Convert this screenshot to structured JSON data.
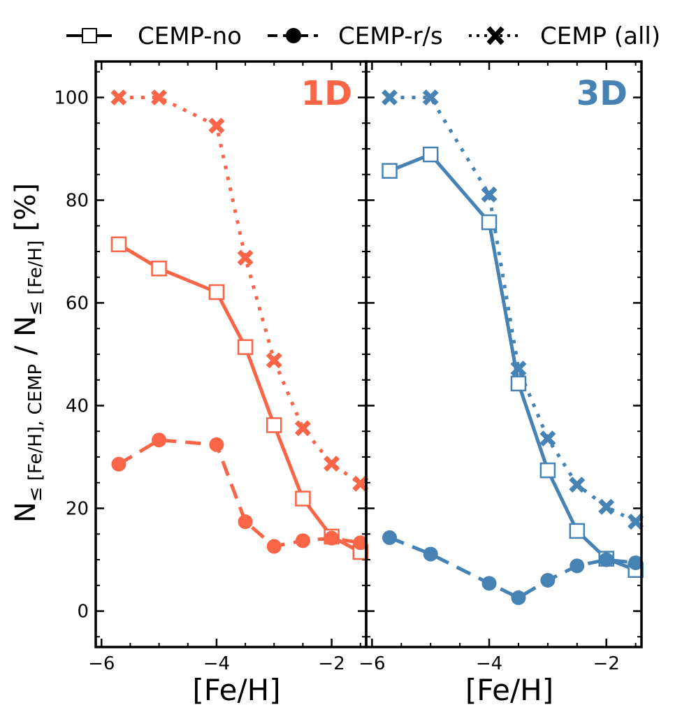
{
  "legend": {
    "position": "top",
    "entries": [
      {
        "label": "CEMP-no",
        "style": "solid",
        "marker": "open-square"
      },
      {
        "label": "CEMP-r/s",
        "style": "dashed",
        "marker": "filled-circle"
      },
      {
        "label": "CEMP (all)",
        "style": "dotted",
        "marker": "x-cross"
      }
    ]
  },
  "ylabel": {
    "main": "N",
    "sub1": "≤ [Fe/H], CEMP",
    "slash": " / N",
    "sub2": "≤ [Fe/H]",
    "unit": " [%]"
  },
  "chart_data": [
    {
      "type": "line",
      "panel_label": "1D",
      "color": "#fa6447",
      "xlabel": "[Fe/H]",
      "xlim": [
        -6.1,
        -1.4
      ],
      "ylim": [
        -7,
        107
      ],
      "xticks": [
        -6,
        -4,
        -2
      ],
      "xtick_labels": [
        "−6",
        "−4",
        "−2"
      ],
      "yticks": [
        0,
        20,
        40,
        60,
        80,
        100
      ],
      "ytick_labels": [
        "0",
        "20",
        "40",
        "60",
        "80",
        "100"
      ],
      "series": [
        {
          "name": "CEMP-no",
          "x": [
            -5.7,
            -5.0,
            -4.0,
            -3.5,
            -3.0,
            -2.5,
            -2.0,
            -1.5
          ],
          "y": [
            71.4,
            66.7,
            62.1,
            51.4,
            36.2,
            21.9,
            14.5,
            11.5
          ]
        },
        {
          "name": "CEMP-r/s",
          "x": [
            -5.7,
            -5.0,
            -4.0,
            -3.5,
            -3.0,
            -2.5,
            -2.0,
            -1.5
          ],
          "y": [
            28.6,
            33.3,
            32.4,
            17.4,
            12.6,
            13.7,
            14.2,
            13.3
          ]
        },
        {
          "name": "CEMP (all)",
          "x": [
            -5.7,
            -5.0,
            -4.0,
            -3.5,
            -3.0,
            -2.5,
            -2.0,
            -1.5
          ],
          "y": [
            100,
            100,
            94.5,
            68.8,
            48.8,
            35.6,
            28.7,
            24.8
          ]
        }
      ]
    },
    {
      "type": "line",
      "panel_label": "3D",
      "color": "#4682b4",
      "xlabel": "[Fe/H]",
      "xlim": [
        -6.1,
        -1.4
      ],
      "ylim": [
        -7,
        107
      ],
      "xticks": [
        -6,
        -4,
        -2
      ],
      "xtick_labels": [
        "−6",
        "−4",
        "−2"
      ],
      "yticks": [
        0,
        20,
        40,
        60,
        80,
        100
      ],
      "ytick_labels": [
        "0",
        "20",
        "40",
        "60",
        "80",
        "100"
      ],
      "series": [
        {
          "name": "CEMP-no",
          "x": [
            -5.7,
            -5.0,
            -4.0,
            -3.5,
            -3.0,
            -2.5,
            -2.0,
            -1.5
          ],
          "y": [
            85.7,
            88.9,
            75.7,
            44.3,
            27.4,
            15.6,
            10.2,
            8.0
          ]
        },
        {
          "name": "CEMP-r/s",
          "x": [
            -5.7,
            -5.0,
            -4.0,
            -3.5,
            -3.0,
            -2.5,
            -2.0,
            -1.5
          ],
          "y": [
            14.3,
            11.1,
            5.4,
            2.6,
            6.0,
            8.8,
            10.0,
            9.4
          ]
        },
        {
          "name": "CEMP (all)",
          "x": [
            -5.7,
            -5.0,
            -4.0,
            -3.5,
            -3.0,
            -2.5,
            -2.0,
            -1.5
          ],
          "y": [
            100,
            100,
            81.1,
            47.2,
            33.6,
            24.6,
            20.3,
            17.4
          ]
        }
      ]
    }
  ]
}
